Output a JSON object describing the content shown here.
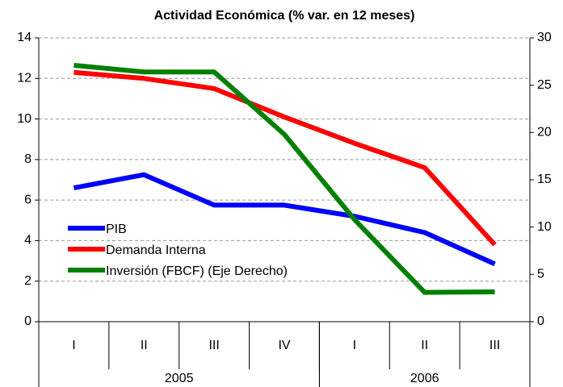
{
  "chart_data": {
    "type": "line",
    "title": "Actividad Económica (% var. en 12 meses)",
    "categories": [
      "I",
      "II",
      "III",
      "IV",
      "I",
      "II",
      "III"
    ],
    "category_groups": [
      {
        "label": "2005",
        "count": 4
      },
      {
        "label": "2006",
        "count": 3
      }
    ],
    "series": [
      {
        "name": "PIB",
        "color": "#0000ff",
        "values": [
          6.6,
          7.25,
          5.75,
          5.75,
          5.2,
          4.4,
          2.85
        ]
      },
      {
        "name": "Demanda Interna",
        "color": "#ff0000",
        "values": [
          12.3,
          12.0,
          11.5,
          10.1,
          8.8,
          7.6,
          3.8
        ]
      },
      {
        "name": "Inversión (FBCF) (Eje Derecho)",
        "color": "#008000",
        "axis": "y2",
        "values": [
          27.1,
          26.4,
          26.4,
          19.8,
          10.8,
          3.1,
          3.15
        ]
      }
    ],
    "ylim": [
      0,
      14
    ],
    "yticks": [
      0,
      2,
      4,
      6,
      8,
      10,
      12,
      14
    ],
    "y2lim": [
      0,
      30
    ],
    "y2ticks": [
      0,
      5,
      10,
      15,
      20,
      25,
      30
    ],
    "grid": true,
    "legend": "lower left"
  }
}
